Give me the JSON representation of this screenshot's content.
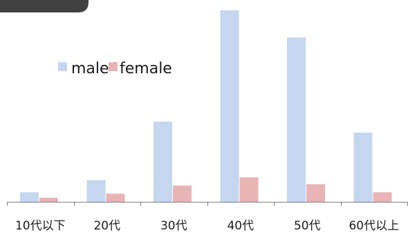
{
  "chart_data": {
    "type": "bar",
    "categories": [
      "10代以下",
      "20代",
      "30代",
      "40代",
      "50代",
      "60代以上"
    ],
    "series": [
      {
        "name": "male",
        "values": [
          3.5,
          8.0,
          29.5,
          70.5,
          60.5,
          25.5
        ],
        "color": "#c5d6ef"
      },
      {
        "name": "female",
        "values": [
          1.5,
          3.0,
          6.0,
          9.0,
          6.5,
          3.5
        ],
        "color": "#e8b4b6"
      }
    ],
    "legend_position": "top-left",
    "ylim": [
      0,
      72
    ],
    "grid": false,
    "axis_color": "#7f7f7f",
    "badge_color": "#404040"
  }
}
